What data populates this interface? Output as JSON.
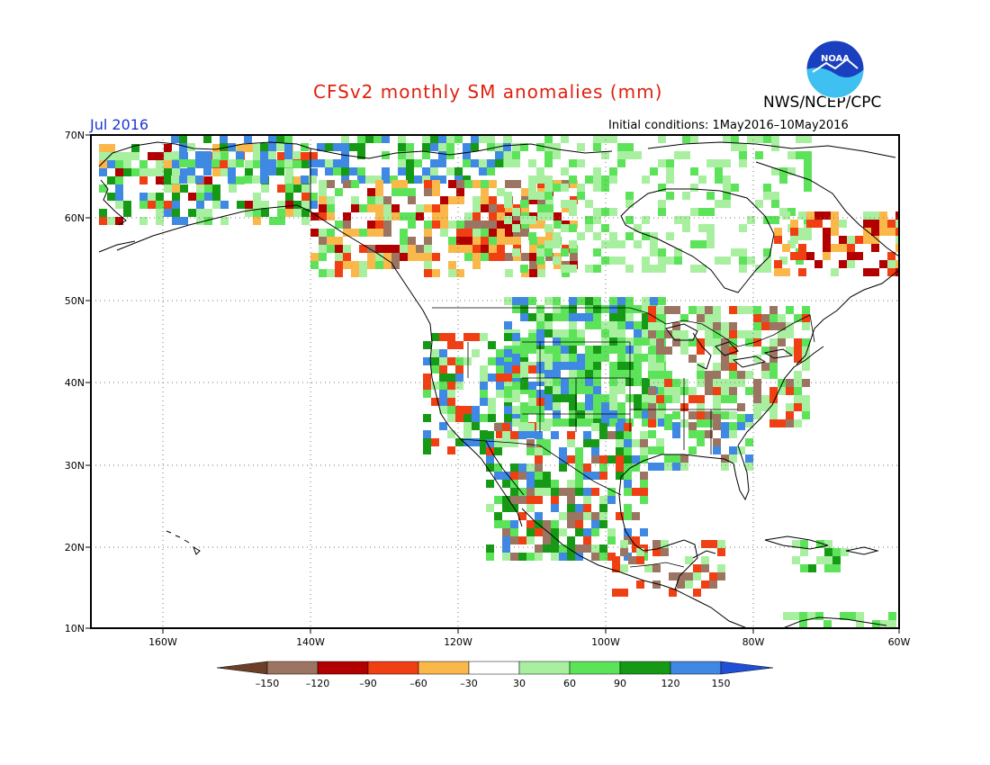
{
  "title": "CFSv2 monthly SM anomalies (mm)",
  "organization": "NWS/NCEP/CPC",
  "logo_text": "NOAA",
  "valid_month": "Jul 2016",
  "initial_conditions": "Initial conditions: 1May2016–10May2016",
  "lat_labels": [
    "70N",
    "60N",
    "50N",
    "40N",
    "30N",
    "20N",
    "10N"
  ],
  "lon_labels": [
    "160W",
    "140W",
    "120W",
    "100W",
    "80W",
    "60W"
  ],
  "colorbar": {
    "ticks": [
      "–150",
      "–120",
      "–90",
      "–60",
      "–30",
      "30",
      "60",
      "90",
      "120",
      "150"
    ],
    "colors": [
      "#6b3f28",
      "#9c7562",
      "#b20000",
      "#f03f12",
      "#fbb84a",
      "#ffffff",
      "#a8f0a0",
      "#5ce35a",
      "#169a16",
      "#3f88e3",
      "#1f4fd8"
    ]
  },
  "icons": {
    "logo": "noaa-logo"
  }
}
